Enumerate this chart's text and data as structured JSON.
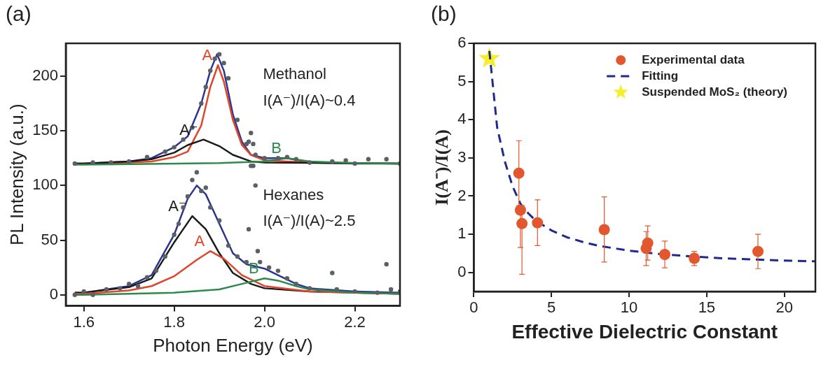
{
  "chart_data": [
    {
      "type": "line",
      "title": "(a)",
      "xlabel": "Photon Energy (eV)",
      "ylabel": "PL Intensity (a.u.)",
      "xlim": [
        1.56,
        2.3
      ],
      "ylim": [
        -10,
        230
      ],
      "xticks": [
        1.6,
        1.8,
        {
          "value": 2.0,
          "label": "2.0"
        },
        2.2
      ],
      "yticks": [
        0,
        50,
        100,
        150,
        200
      ],
      "legend": false,
      "annotations": [
        "Methanol",
        "I(A⁻)/I(A)~0.4",
        "Hexanes",
        "I(A⁻)/I(A)~2.5"
      ],
      "series": [
        {
          "type": "scatter",
          "marker": "circle",
          "color": "#5a6066",
          "x": [
            1.58,
            1.62,
            1.66,
            1.7,
            1.74,
            1.78,
            1.8,
            1.82,
            1.84,
            1.86,
            1.87,
            1.88,
            1.89,
            1.9,
            1.91,
            1.92,
            1.94,
            1.96,
            1.965,
            1.97,
            1.975,
            1.98,
            2.0,
            2.03,
            2.05,
            2.07,
            2.1,
            2.15,
            2.18,
            2.2,
            2.23,
            2.27,
            2.3
          ],
          "values": [
            120,
            121,
            121,
            122,
            126,
            131,
            135,
            142,
            153,
            175,
            190,
            205,
            216,
            220,
            212,
            198,
            160,
            138,
            140,
            148,
            138,
            128,
            125,
            125,
            126,
            124,
            121,
            122,
            123,
            120,
            124,
            124,
            120
          ]
        },
        {
          "type": "scatter",
          "marker": "circle",
          "color": "#5a6066",
          "x": [
            1.58,
            1.6,
            1.62,
            1.65,
            1.68,
            1.7,
            1.72,
            1.74,
            1.76,
            1.78,
            1.8,
            1.81,
            1.82,
            1.83,
            1.84,
            1.85,
            1.86,
            1.87,
            1.88,
            1.9,
            1.92,
            1.94,
            1.96,
            1.965,
            1.97,
            1.975,
            1.98,
            1.985,
            1.99,
            2.01,
            2.03,
            2.05,
            2.07,
            2.1,
            2.12,
            2.15,
            2.16,
            2.2,
            2.25,
            2.27,
            2.28,
            2.3
          ],
          "values": [
            0,
            3,
            0,
            5,
            6,
            10,
            8,
            16,
            22,
            35,
            55,
            65,
            80,
            90,
            105,
            112,
            95,
            98,
            80,
            68,
            45,
            35,
            30,
            60,
            118,
            118,
            100,
            40,
            30,
            25,
            22,
            15,
            10,
            6,
            4,
            20,
            5,
            3,
            2,
            28,
            5,
            3
          ]
        },
        {
          "color": "#2b3590",
          "x": [
            1.58,
            1.6,
            1.7,
            1.75,
            1.8,
            1.83,
            1.86,
            1.88,
            1.895,
            1.91,
            1.93,
            1.95,
            1.97,
            2.0,
            2.05,
            2.1,
            2.2,
            2.3
          ],
          "values": [
            120,
            120,
            122,
            125,
            135,
            145,
            175,
            205,
            220,
            205,
            165,
            140,
            128,
            125,
            125,
            121,
            120,
            120
          ]
        },
        {
          "name": "A",
          "color": "#e0452b",
          "x": [
            1.58,
            1.6,
            1.7,
            1.75,
            1.8,
            1.83,
            1.86,
            1.88,
            1.897,
            1.91,
            1.93,
            1.95,
            1.97,
            2.0,
            2.05,
            2.1,
            2.3
          ],
          "values": [
            120,
            120,
            121,
            122,
            126,
            131,
            155,
            190,
            210,
            195,
            160,
            137,
            128,
            123,
            122,
            121,
            120
          ]
        },
        {
          "name": "A⁻",
          "color": "#1a1a1a",
          "x": [
            1.58,
            1.6,
            1.7,
            1.75,
            1.8,
            1.83,
            1.865,
            1.9,
            1.93,
            1.97,
            2.0,
            2.3
          ],
          "values": [
            120,
            120,
            122,
            124,
            130,
            137,
            142,
            136,
            128,
            122,
            121,
            120
          ]
        },
        {
          "name": "B",
          "color": "#2e8a4a",
          "x": [
            1.58,
            1.6,
            1.9,
            2.0,
            2.05,
            2.1,
            2.2,
            2.3
          ],
          "values": [
            119,
            119,
            120.5,
            122,
            125,
            122,
            120.5,
            120
          ]
        },
        {
          "color": "#2b3590",
          "x": [
            1.58,
            1.6,
            1.7,
            1.75,
            1.8,
            1.83,
            1.85,
            1.87,
            1.9,
            1.93,
            1.96,
            2.0,
            2.03,
            2.07,
            2.1,
            2.2,
            2.3
          ],
          "values": [
            2,
            2,
            8,
            18,
            55,
            88,
            100,
            92,
            65,
            38,
            28,
            24,
            18,
            10,
            6,
            3,
            2
          ]
        },
        {
          "name": "A⁻",
          "color": "#1a1a1a",
          "x": [
            1.58,
            1.6,
            1.7,
            1.75,
            1.8,
            1.84,
            1.87,
            1.9,
            1.93,
            1.97,
            2.0,
            2.1,
            2.3
          ],
          "values": [
            2,
            2,
            7,
            15,
            48,
            72,
            60,
            38,
            20,
            10,
            6,
            3,
            1
          ]
        },
        {
          "name": "A",
          "color": "#e0452b",
          "x": [
            1.58,
            1.6,
            1.7,
            1.75,
            1.8,
            1.85,
            1.88,
            1.91,
            1.95,
            2.0,
            2.1,
            2.3
          ],
          "values": [
            1,
            1,
            4,
            8,
            17,
            32,
            40,
            33,
            18,
            8,
            3,
            1
          ]
        },
        {
          "name": "B",
          "color": "#2e8a4a",
          "x": [
            1.58,
            1.6,
            1.8,
            1.9,
            1.95,
            2.0,
            2.03,
            2.07,
            2.1,
            2.2,
            2.3
          ],
          "values": [
            0,
            0,
            2,
            5,
            10,
            15,
            13,
            8,
            5,
            2,
            1
          ]
        }
      ]
    },
    {
      "type": "scatter",
      "title": "(b)",
      "xlabel": "Effective Dielectric Constant",
      "ylabel": "I(A⁻)/I(A)",
      "xlim": [
        0,
        22
      ],
      "ylim": [
        -0.5,
        6
      ],
      "xticks": [
        0,
        5,
        10,
        15,
        20
      ],
      "yticks": [
        0,
        1,
        2,
        3,
        4,
        5,
        6
      ],
      "legend": "top right",
      "series": [
        {
          "name": "Experimental data",
          "marker": "circle",
          "color": "#e2572e",
          "x": [
            2.9,
            3.0,
            3.1,
            4.1,
            8.4,
            11.1,
            11.2,
            12.3,
            14.2,
            18.3
          ],
          "values": [
            2.6,
            1.63,
            1.28,
            1.3,
            1.12,
            0.63,
            0.77,
            0.47,
            0.37,
            0.55
          ],
          "errors": [
            [
              1.75,
              3.45
            ],
            [
              0.65,
              1.63
            ],
            [
              -0.05,
              1.75
            ],
            [
              0.7,
              1.9
            ],
            [
              0.27,
              1.98
            ],
            [
              0.18,
              1.07
            ],
            [
              0.32,
              1.22
            ],
            [
              0.12,
              0.82
            ],
            [
              0.18,
              0.55
            ],
            [
              0.1,
              1.0
            ]
          ]
        },
        {
          "type": "line",
          "name": "Fitting",
          "line_style": "dashed",
          "color": "#1f2a8c",
          "x": [
            1,
            1.5,
            2,
            2.5,
            3,
            3.5,
            4,
            5,
            6,
            7,
            8,
            10,
            12,
            14,
            16,
            18,
            20,
            22
          ],
          "values": [
            5.8,
            3.8,
            2.9,
            2.25,
            1.8,
            1.55,
            1.35,
            1.1,
            0.92,
            0.8,
            0.7,
            0.57,
            0.48,
            0.42,
            0.37,
            0.34,
            0.31,
            0.29
          ]
        },
        {
          "name": "Suspended MoS₂ (theory)",
          "marker": "star",
          "color": "#f5ee2a",
          "x": [
            1.0
          ],
          "values": [
            5.6
          ]
        }
      ]
    }
  ]
}
